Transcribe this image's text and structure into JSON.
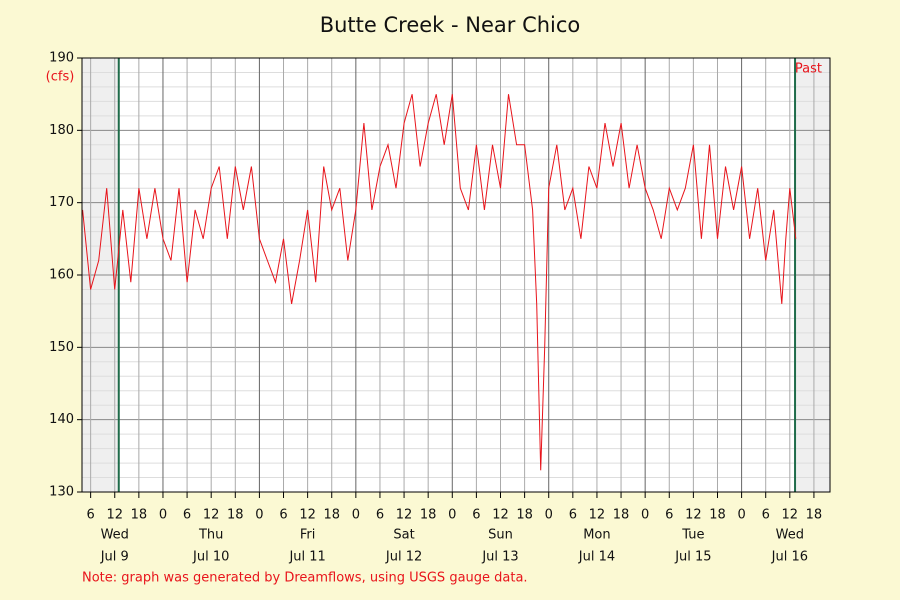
{
  "chart_data": {
    "type": "line",
    "title": "Butte Creek - Near Chico",
    "y_unit": "(cfs)",
    "annotation": "Past",
    "note": "Note: graph was generated by Dreamflows, using USGS gauge data.",
    "color": "#e8141b",
    "grid": true,
    "markers": [
      13,
      181.3
    ],
    "xlim": [
      3.85,
      190
    ],
    "ylim": [
      130,
      190
    ],
    "yticks": [
      130,
      140,
      150,
      160,
      170,
      180,
      190
    ],
    "xticks": [
      6,
      12,
      18,
      {
        "value": 24,
        "label": "0"
      },
      {
        "value": 30,
        "label": "6"
      },
      {
        "value": 36,
        "label": "12"
      },
      {
        "value": 42,
        "label": "18"
      },
      {
        "value": 48,
        "label": "0"
      },
      {
        "value": 54,
        "label": "6"
      },
      {
        "value": 60,
        "label": "12"
      },
      {
        "value": 66,
        "label": "18"
      },
      {
        "value": 72,
        "label": "0"
      },
      {
        "value": 78,
        "label": "6"
      },
      {
        "value": 84,
        "label": "12"
      },
      {
        "value": 90,
        "label": "18"
      },
      {
        "value": 96,
        "label": "0"
      },
      {
        "value": 102,
        "label": "6"
      },
      {
        "value": 108,
        "label": "12"
      },
      {
        "value": 114,
        "label": "18"
      },
      {
        "value": 120,
        "label": "0"
      },
      {
        "value": 126,
        "label": "6"
      },
      {
        "value": 132,
        "label": "12"
      },
      {
        "value": 138,
        "label": "18"
      },
      {
        "value": 144,
        "label": "0"
      },
      {
        "value": 150,
        "label": "6"
      },
      {
        "value": 156,
        "label": "12"
      },
      {
        "value": 162,
        "label": "18"
      },
      {
        "value": 168,
        "label": "0"
      },
      {
        "value": 174,
        "label": "6"
      },
      {
        "value": 180,
        "label": "12"
      },
      {
        "value": 186,
        "label": "18"
      }
    ],
    "day_labels": [
      {
        "weekday": "Wed",
        "date": "Jul 9"
      },
      {
        "weekday": "Thu",
        "date": "Jul 10"
      },
      {
        "weekday": "Fri",
        "date": "Jul 11"
      },
      {
        "weekday": "Sat",
        "date": "Jul 12"
      },
      {
        "weekday": "Sun",
        "date": "Jul 13"
      },
      {
        "weekday": "Mon",
        "date": "Jul 14"
      },
      {
        "weekday": "Tue",
        "date": "Jul 15"
      },
      {
        "weekday": "Wed",
        "date": "Jul 16"
      }
    ],
    "x": [
      4,
      6,
      8,
      10,
      12,
      14,
      16,
      18,
      20,
      22,
      24,
      26,
      28,
      30,
      32,
      34,
      36,
      38,
      40,
      42,
      44,
      46,
      48,
      50,
      52,
      54,
      56,
      58,
      60,
      62,
      64,
      66,
      68,
      70,
      72,
      74,
      76,
      78,
      80,
      82,
      84,
      86,
      88,
      90,
      92,
      94,
      96,
      98,
      100,
      102,
      104,
      106,
      108,
      110,
      112,
      114,
      116,
      117,
      118,
      119,
      120,
      122,
      124,
      126,
      128,
      130,
      132,
      134,
      136,
      138,
      140,
      142,
      144,
      146,
      148,
      150,
      152,
      154,
      156,
      158,
      160,
      162,
      164,
      166,
      168,
      170,
      172,
      174,
      176,
      178,
      179,
      180,
      181.5
    ],
    "values": [
      169,
      158,
      162,
      172,
      158,
      169,
      159,
      172,
      165,
      172,
      165,
      162,
      172,
      159,
      169,
      165,
      172,
      175,
      165,
      175,
      169,
      175,
      165,
      162,
      159,
      165,
      156,
      162,
      169,
      159,
      175,
      169,
      172,
      162,
      169,
      181,
      169,
      175,
      178,
      172,
      181,
      185,
      175,
      181,
      185,
      178,
      185,
      172,
      169,
      178,
      169,
      178,
      172,
      185,
      178,
      178,
      169,
      156,
      133,
      150,
      172,
      178,
      169,
      172,
      165,
      175,
      172,
      181,
      175,
      181,
      172,
      178,
      172,
      169,
      165,
      172,
      169,
      172,
      178,
      165,
      178,
      165,
      175,
      169,
      175,
      165,
      172,
      162,
      169,
      156,
      165,
      172,
      165
    ]
  }
}
